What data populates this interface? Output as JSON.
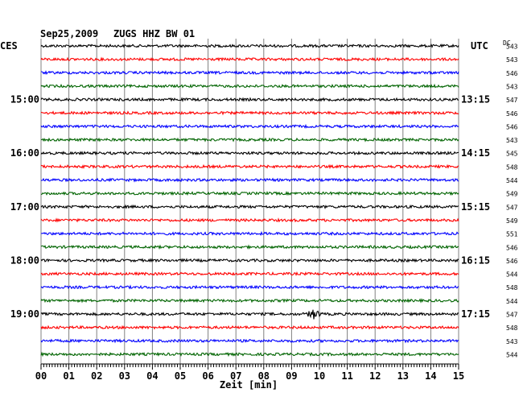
{
  "header": {
    "date": "Sep25,2009",
    "station": "ZUGS HHZ BW 01",
    "left_tz": "CES",
    "right_tz": "UTC",
    "dc_label": "DC"
  },
  "chart_data": {
    "type": "line",
    "title": "Sep25,2009   ZUGS HHZ BW 01",
    "xlabel": "Zeit [min]",
    "xlim": [
      0,
      15
    ],
    "x_ticks": [
      "00",
      "01",
      "02",
      "03",
      "04",
      "05",
      "06",
      "07",
      "08",
      "09",
      "10",
      "11",
      "12",
      "13",
      "14",
      "15"
    ],
    "trace_colors": [
      "#000000",
      "#ff0000",
      "#0000ff",
      "#006400"
    ],
    "traces_per_hour": 4,
    "left_hour_labels": [
      {
        "row": 4,
        "text": "15:00"
      },
      {
        "row": 8,
        "text": "16:00"
      },
      {
        "row": 12,
        "text": "17:00"
      },
      {
        "row": 16,
        "text": "18:00"
      },
      {
        "row": 20,
        "text": "19:00"
      }
    ],
    "right_hour_labels": [
      {
        "row": 4,
        "text": "13:15"
      },
      {
        "row": 8,
        "text": "14:15"
      },
      {
        "row": 12,
        "text": "15:15"
      },
      {
        "row": 16,
        "text": "16:15"
      },
      {
        "row": 20,
        "text": "17:15"
      }
    ],
    "dc_offsets": [
      543,
      543,
      546,
      543,
      547,
      546,
      546,
      543,
      545,
      548,
      544,
      549,
      547,
      549,
      551,
      546,
      546,
      544,
      548,
      544,
      547,
      548,
      543,
      544
    ],
    "event": {
      "row": 20,
      "minute": 9.8
    }
  }
}
